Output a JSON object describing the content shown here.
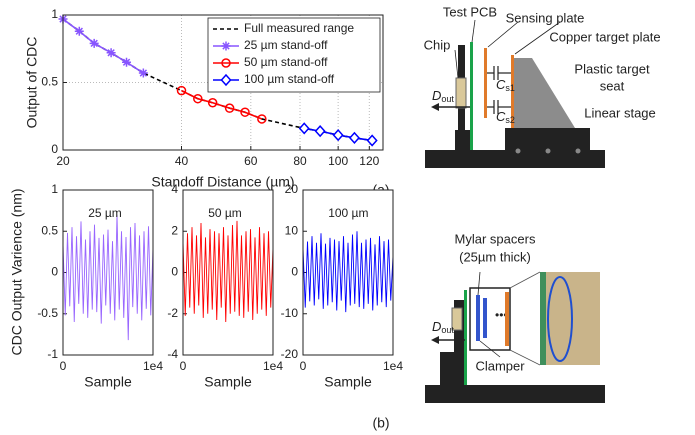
{
  "chart_data": [
    {
      "type": "line",
      "xlabel": "Standoff Distance (µm)",
      "ylabel": "Output of CDC",
      "log_x": true,
      "grid": true,
      "legend": "upper right",
      "xlim": [
        20,
        130
      ],
      "xticks": [
        20,
        40,
        60,
        80,
        100,
        120
      ],
      "ylim": [
        0,
        1
      ],
      "yticks": [
        0,
        0.5,
        1
      ],
      "series": [
        {
          "name": "Full measured range",
          "color": "#000000",
          "style": "dashed",
          "marker": "none",
          "x": [
            20,
            22,
            24,
            26.5,
            29,
            32,
            40,
            44,
            48,
            53,
            58,
            64,
            82,
            90,
            100,
            110,
            122
          ],
          "values": [
            0.97,
            0.88,
            0.79,
            0.72,
            0.65,
            0.57,
            0.44,
            0.38,
            0.35,
            0.31,
            0.28,
            0.23,
            0.16,
            0.14,
            0.11,
            0.09,
            0.07
          ]
        },
        {
          "name": "25 µm stand-off",
          "color": "#8855ff",
          "style": "solid",
          "marker": "star",
          "x": [
            20,
            22,
            24,
            26.5,
            29,
            32
          ],
          "values": [
            0.97,
            0.88,
            0.79,
            0.72,
            0.65,
            0.57
          ]
        },
        {
          "name": "50 µm stand-off",
          "color": "#ff0000",
          "style": "solid",
          "marker": "circle",
          "x": [
            40,
            44,
            48,
            53,
            58,
            64
          ],
          "values": [
            0.44,
            0.38,
            0.35,
            0.31,
            0.28,
            0.23
          ]
        },
        {
          "name": "100 µm stand-off",
          "color": "#0000ff",
          "style": "solid",
          "marker": "diamond",
          "x": [
            82,
            90,
            100,
            110,
            122
          ],
          "values": [
            0.16,
            0.14,
            0.11,
            0.09,
            0.07
          ]
        }
      ]
    },
    {
      "type": "line",
      "xlabel": "Sample",
      "annotation": "25 µm",
      "xlim": [
        0,
        10000
      ],
      "xticks": [
        0,
        {
          "value": 10000,
          "label": "1e4"
        }
      ],
      "ylim": [
        -1,
        1
      ],
      "yticks": [
        -1,
        -0.5,
        0,
        0.5,
        1
      ],
      "x": [
        0,
        250,
        500,
        750,
        1000,
        1250,
        1500,
        1750,
        2000,
        2250,
        2500,
        2750,
        3000,
        3250,
        3500,
        3750,
        4000,
        4250,
        4500,
        4750,
        5000,
        5250,
        5500,
        5750,
        6000,
        6250,
        6500,
        6750,
        7000,
        7250,
        7500,
        7750,
        8000,
        8250,
        8500,
        8750,
        9000,
        9250,
        9500,
        9750,
        10000
      ],
      "series": [
        {
          "color": "#9966ff",
          "style": "solid",
          "marker": "none",
          "values": [
            0.35,
            -0.52,
            0.48,
            -0.41,
            0.55,
            -0.6,
            0.44,
            -0.38,
            0.62,
            -0.5,
            0.4,
            -0.55,
            0.5,
            -0.45,
            0.58,
            -0.48,
            0.42,
            -0.62,
            0.46,
            -0.4,
            0.52,
            -0.5,
            0.38,
            -0.58,
            0.7,
            -0.45,
            0.5,
            -0.55,
            0.43,
            -0.82,
            0.55,
            -0.42,
            0.6,
            -0.5,
            0.45,
            -0.58,
            0.5,
            -0.44,
            0.56,
            -0.52,
            0.3
          ]
        }
      ]
    },
    {
      "type": "line",
      "xlabel": "Sample",
      "annotation": "50 µm",
      "xlim": [
        0,
        10000
      ],
      "xticks": [
        0,
        {
          "value": 10000,
          "label": "1e4"
        }
      ],
      "ylim": [
        -4,
        4
      ],
      "yticks": [
        -4,
        -2,
        0,
        2,
        4
      ],
      "x": [
        0,
        250,
        500,
        750,
        1000,
        1250,
        1500,
        1750,
        2000,
        2250,
        2500,
        2750,
        3000,
        3250,
        3500,
        3750,
        4000,
        4250,
        4500,
        4750,
        5000,
        5250,
        5500,
        5750,
        6000,
        6250,
        6500,
        6750,
        7000,
        7250,
        7500,
        7750,
        8000,
        8250,
        8500,
        8750,
        9000,
        9250,
        9500,
        9750,
        10000
      ],
      "series": [
        {
          "color": "#ff0000",
          "style": "solid",
          "marker": "none",
          "values": [
            1.5,
            -2.1,
            1.9,
            -1.7,
            2.2,
            -2.0,
            1.8,
            -1.6,
            2.4,
            -2.2,
            1.7,
            -2.0,
            2.1,
            -1.8,
            2.0,
            -2.3,
            1.9,
            -1.7,
            2.2,
            -2.4,
            1.8,
            -2.0,
            2.3,
            -1.9,
            2.5,
            -2.1,
            1.8,
            -2.2,
            2.0,
            -1.9,
            2.1,
            -2.3,
            1.7,
            -2.0,
            2.2,
            -1.8,
            1.9,
            -2.1,
            2.0,
            -1.7,
            1.2
          ]
        }
      ]
    },
    {
      "type": "line",
      "xlabel": "Sample",
      "annotation": "100 µm",
      "xlim": [
        0,
        10000
      ],
      "xticks": [
        0,
        {
          "value": 10000,
          "label": "1e4"
        }
      ],
      "ylim": [
        -20,
        20
      ],
      "yticks": [
        -20,
        -10,
        0,
        10,
        20
      ],
      "x": [
        0,
        250,
        500,
        750,
        1000,
        1250,
        1500,
        1750,
        2000,
        2250,
        2500,
        2750,
        3000,
        3250,
        3500,
        3750,
        4000,
        4250,
        4500,
        4750,
        5000,
        5250,
        5500,
        5750,
        6000,
        6250,
        6500,
        6750,
        7000,
        7250,
        7500,
        7750,
        8000,
        8250,
        8500,
        8750,
        9000,
        9250,
        9500,
        9750,
        10000
      ],
      "series": [
        {
          "color": "#0000ff",
          "style": "solid",
          "marker": "none",
          "values": [
            6,
            -8.5,
            7.5,
            -7,
            8.8,
            -8,
            7.2,
            -6.5,
            9.5,
            -8.8,
            7,
            -8,
            8.4,
            -7.2,
            8,
            -9.2,
            7.6,
            -6.8,
            8.8,
            -9.6,
            7.2,
            -8,
            9.2,
            -7.6,
            10,
            -8.4,
            7.2,
            -8.8,
            8,
            -7.6,
            8.4,
            -9.2,
            6.8,
            -8,
            8.8,
            -7.2,
            7.6,
            -8.4,
            8,
            -6.8,
            4
          ]
        }
      ]
    }
  ],
  "shared_ylabel": "CDC Output Varience (nm)",
  "captions": [
    "(a)",
    "(b)"
  ],
  "setup_a": {
    "test_pcb": "Test PCB",
    "sensing_plate": "Sensing plate",
    "copper_plate": "Copper target plate",
    "chip": "Chip",
    "seat": [
      "Plastic target",
      "seat"
    ],
    "dout": {
      "main": "D",
      "sub": "out"
    },
    "cs1": {
      "main": "C",
      "sub": "s1"
    },
    "cs2": {
      "main": "C",
      "sub": "s2"
    },
    "stage": "Linear stage"
  },
  "setup_b": {
    "spacers": [
      "Mylar spacers",
      "(25µm thick)"
    ],
    "dout": {
      "main": "D",
      "sub": "out"
    },
    "clamper": "Clamper"
  }
}
